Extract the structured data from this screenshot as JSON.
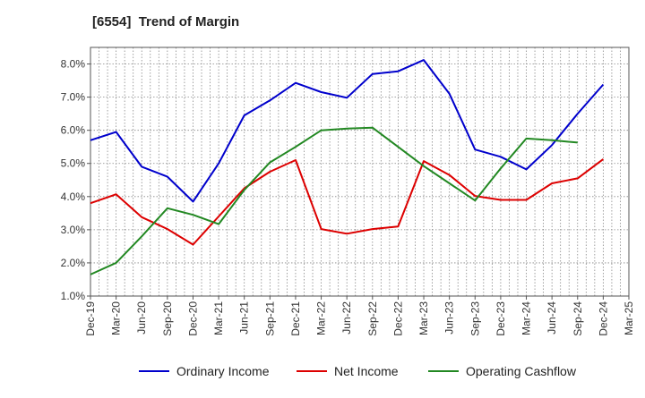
{
  "chart_data": {
    "type": "line",
    "title": "[6554]  Trend of Margin",
    "xlabel": "",
    "ylabel": "",
    "categories": [
      "Dec-19",
      "Mar-20",
      "Jun-20",
      "Sep-20",
      "Dec-20",
      "Mar-21",
      "Jun-21",
      "Sep-21",
      "Dec-21",
      "Mar-22",
      "Jun-22",
      "Sep-22",
      "Dec-22",
      "Mar-23",
      "Jun-23",
      "Sep-23",
      "Dec-23",
      "Mar-24",
      "Jun-24",
      "Sep-24",
      "Dec-24",
      "Mar-25"
    ],
    "ylim": [
      1.0,
      8.5
    ],
    "yticks": [
      1.0,
      2.0,
      3.0,
      4.0,
      5.0,
      6.0,
      7.0,
      8.0
    ],
    "ytick_labels": [
      "1.0%",
      "2.0%",
      "3.0%",
      "4.0%",
      "5.0%",
      "6.0%",
      "7.0%",
      "8.0%"
    ],
    "grid": true,
    "legend_position": "bottom",
    "series": [
      {
        "name": "Ordinary Income",
        "color": "#0000cc",
        "values": [
          5.7,
          5.95,
          4.9,
          4.6,
          3.85,
          5.0,
          6.45,
          6.9,
          7.43,
          7.15,
          6.98,
          7.7,
          7.78,
          8.12,
          7.1,
          5.42,
          5.2,
          4.82,
          5.55,
          6.5,
          7.38,
          null
        ]
      },
      {
        "name": "Net Income",
        "color": "#dd0000",
        "values": [
          3.8,
          4.07,
          3.38,
          3.02,
          2.55,
          3.4,
          4.25,
          4.75,
          5.1,
          3.02,
          2.88,
          3.02,
          3.1,
          5.07,
          4.65,
          4.02,
          3.9,
          3.9,
          4.4,
          4.55,
          5.13,
          null
        ]
      },
      {
        "name": "Operating Cashflow",
        "color": "#228822",
        "values": [
          1.65,
          2.0,
          2.8,
          3.65,
          3.45,
          3.17,
          4.2,
          5.03,
          5.5,
          6.0,
          6.05,
          6.08,
          5.5,
          4.92,
          4.4,
          3.88,
          4.85,
          5.75,
          5.7,
          5.63,
          null,
          null
        ]
      }
    ]
  }
}
